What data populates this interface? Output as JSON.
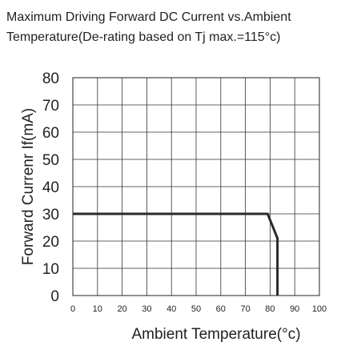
{
  "chart_data": {
    "type": "line",
    "title_lines": [
      "Maximum Driving Forward DC Current vs.Ambient",
      "Temperature(De-rating based on Tj max.=115°c)"
    ],
    "xlabel": "Ambient Temperature(°c)",
    "ylabel": "Forward Currenr If(mA)",
    "xlim": [
      0,
      100
    ],
    "ylim": [
      0,
      80
    ],
    "x_ticks": [
      "0",
      "10",
      "20",
      "30",
      "40",
      "50",
      "60",
      "70",
      "80",
      "90",
      "100"
    ],
    "y_ticks": [
      "0",
      "10",
      "20",
      "30",
      "40",
      "50",
      "60",
      "70",
      "80"
    ],
    "grid": true,
    "series": [
      {
        "x": [
          0,
          79,
          83,
          83,
          83
        ],
        "y": [
          30,
          30,
          21,
          21,
          0
        ]
      }
    ],
    "colors": {
      "line": "#2a2a2a",
      "grid": "#333333",
      "frame": "#222222"
    }
  }
}
